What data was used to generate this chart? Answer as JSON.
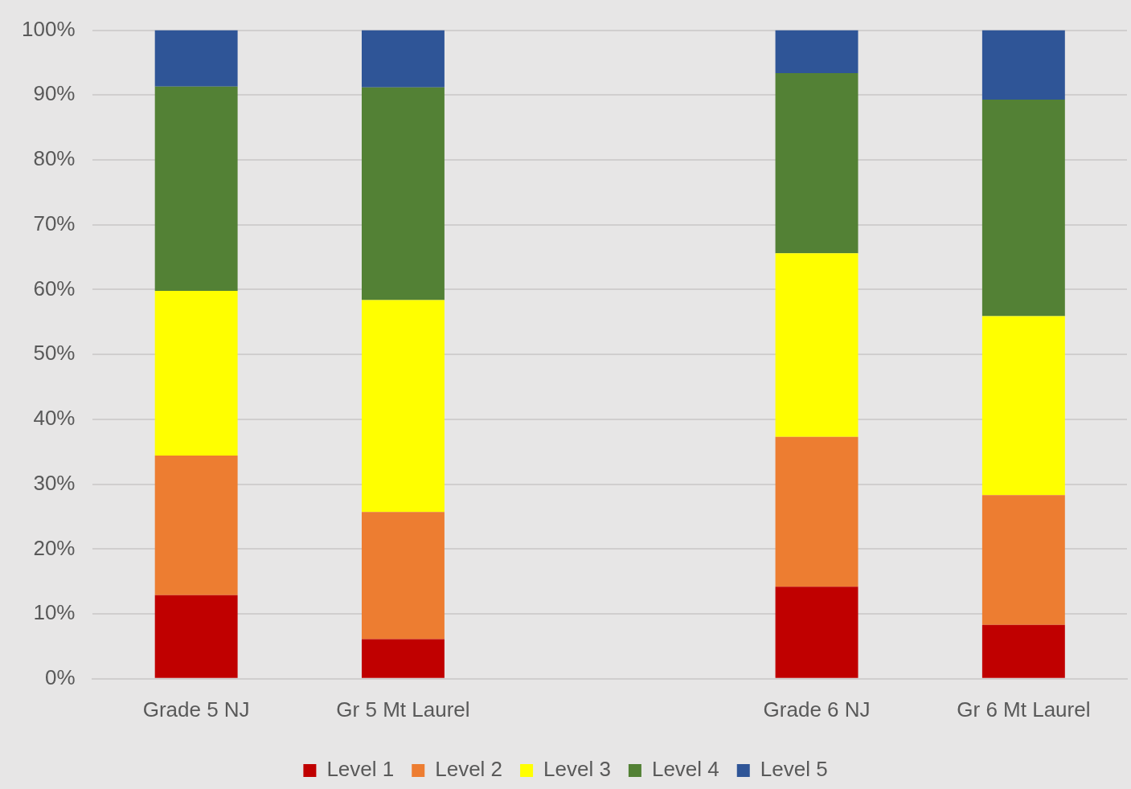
{
  "chart_data": {
    "type": "bar",
    "stacked": true,
    "categories": [
      "Grade 5 NJ",
      "Gr 5 Mt Laurel",
      null,
      "Grade 6 NJ",
      "Gr 6 Mt Laurel"
    ],
    "series": [
      {
        "name": "Level 1",
        "color": "#c00000",
        "values": [
          12.9,
          6.1,
          null,
          14.2,
          8.3
        ]
      },
      {
        "name": "Level 2",
        "color": "#ed7d31",
        "values": [
          21.5,
          19.6,
          null,
          23.1,
          20.0
        ]
      },
      {
        "name": "Level 3",
        "color": "#ffff00",
        "values": [
          25.4,
          32.7,
          null,
          28.3,
          27.6
        ]
      },
      {
        "name": "Level 4",
        "color": "#538135",
        "values": [
          31.5,
          32.8,
          null,
          27.8,
          33.4
        ]
      },
      {
        "name": "Level 5",
        "color": "#2f5597",
        "values": [
          8.7,
          8.8,
          null,
          6.6,
          10.7
        ]
      }
    ],
    "ylim": [
      0,
      100
    ],
    "yticks": [
      {
        "value": 0,
        "label": "0%"
      },
      {
        "value": 10,
        "label": "10%"
      },
      {
        "value": 20,
        "label": "20%"
      },
      {
        "value": 30,
        "label": "30%"
      },
      {
        "value": 40,
        "label": "40%"
      },
      {
        "value": 50,
        "label": "50%"
      },
      {
        "value": 60,
        "label": "60%"
      },
      {
        "value": 70,
        "label": "70%"
      },
      {
        "value": 80,
        "label": "80%"
      },
      {
        "value": 90,
        "label": "90%"
      },
      {
        "value": 100,
        "label": "100%"
      }
    ],
    "grid": "y",
    "legend": "bottom"
  }
}
